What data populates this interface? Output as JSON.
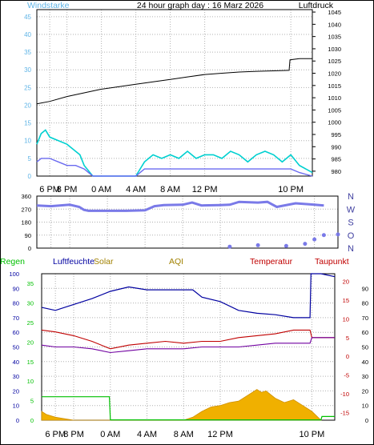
{
  "header": {
    "title": "24 hour graph day : 16 Marz 2026",
    "left_label": "Windstarke",
    "right_label": "Luftdruck"
  },
  "colors": {
    "gust": "#00d0d0",
    "wind": "#6a6af0",
    "pressure": "#000000",
    "direction": "#7a7ae8",
    "humidity": "#0000a0",
    "temperature": "#c00000",
    "dewpoint": "#7000a0",
    "rain": "#00c000",
    "solar": "#f0b000",
    "grid": "#b0b0b0"
  },
  "chart_data": [
    {
      "type": "line",
      "panel": "wind-pressure",
      "title": "24 hour graph day : 16 Marz 2026",
      "ylabel_left": "Windstarke",
      "ylabel_right": "Luftdruck",
      "x_ticks": [
        "6 PM",
        "8 PM",
        "0 AM",
        "4 AM",
        "8 AM",
        "12 PM",
        "10 PM"
      ],
      "x_tick_hours": [
        18,
        20,
        24,
        28,
        32,
        36,
        46
      ],
      "x_range_hours": [
        16.5,
        48.5
      ],
      "y_left_ticks": [
        0,
        5,
        10,
        15,
        20,
        25,
        30,
        35,
        40,
        45
      ],
      "y_left_range": [
        0,
        47
      ],
      "y_right_ticks": [
        980,
        985,
        990,
        995,
        1000,
        1005,
        1010,
        1015,
        1020,
        1025,
        1030,
        1035,
        1040,
        1045
      ],
      "y_right_range": [
        978,
        1046
      ],
      "grid": true,
      "series": [
        {
          "axis": "right",
          "x": [
            16.5,
            18,
            20,
            22,
            24,
            26,
            28,
            30,
            32,
            34,
            36,
            38,
            40,
            42,
            44,
            45.8,
            45.9,
            47,
            48.5
          ],
          "values": [
            1007.5,
            1008.5,
            1010.5,
            1012,
            1013.5,
            1014.5,
            1015.5,
            1016.5,
            1017.5,
            1018.5,
            1019.5,
            1020,
            1020.5,
            1020.8,
            1021,
            1021.2,
            1025.5,
            1026,
            1026
          ]
        },
        {
          "axis": "left",
          "x": [
            16.5,
            17,
            17.5,
            18,
            19,
            20,
            20.5,
            21,
            21.5,
            22,
            23,
            24,
            26,
            28,
            29,
            30,
            31,
            32,
            33,
            34,
            35,
            36,
            37,
            38,
            39,
            40,
            41,
            42,
            43,
            44,
            45,
            46,
            47,
            48.5
          ],
          "values": [
            9,
            12,
            13,
            11,
            10,
            9,
            8,
            7,
            6,
            3,
            0,
            0,
            0,
            0,
            4,
            6,
            5,
            6,
            5,
            7,
            5,
            6,
            6,
            5,
            7,
            6,
            4,
            6,
            7,
            6,
            4,
            6,
            3,
            1
          ]
        },
        {
          "axis": "left",
          "x": [
            16.5,
            17,
            18,
            19,
            20,
            21,
            22,
            23,
            24,
            26,
            28,
            29,
            30,
            32,
            34,
            36,
            38,
            40,
            42,
            44,
            46,
            47,
            48.5
          ],
          "values": [
            4,
            5,
            5,
            4,
            3,
            3,
            2,
            0,
            0,
            0,
            0,
            2,
            2,
            2,
            2,
            2,
            2,
            2,
            2,
            2,
            2,
            1,
            0
          ]
        }
      ]
    },
    {
      "type": "scatter",
      "panel": "wind-direction",
      "y_ticks": [
        0,
        90,
        180,
        270,
        360
      ],
      "y_range": [
        0,
        360
      ],
      "compass_labels": [
        "N",
        "W",
        "S",
        "O",
        "N"
      ],
      "grid": true,
      "series": [
        {
          "x": [
            16.5,
            18,
            20,
            21,
            21.5,
            22,
            24,
            26,
            28,
            29,
            30,
            32,
            33,
            34,
            36,
            37,
            38,
            40,
            41,
            42,
            44,
            45,
            46,
            47
          ],
          "values": [
            295,
            290,
            300,
            285,
            265,
            258,
            258,
            258,
            262,
            290,
            298,
            300,
            315,
            295,
            298,
            300,
            320,
            315,
            320,
            285,
            310,
            305,
            300,
            295
          ]
        },
        {
          "x": [
            37,
            40,
            43,
            45,
            46,
            47,
            48.5
          ],
          "values": [
            10,
            20,
            15,
            30,
            60,
            90,
            95
          ]
        }
      ]
    },
    {
      "type": "line",
      "panel": "temp-humidity-rain-solar",
      "legend": [
        "Regen",
        "Luftfeuchte",
        "Solar",
        "AQI",
        "Temperatur",
        "Taupunkt"
      ],
      "x_ticks": [
        "6 PM",
        "8 PM",
        "0 AM",
        "4 AM",
        "8 AM",
        "12 PM",
        "10 PM"
      ],
      "x_tick_hours": [
        18,
        20,
        24,
        28,
        32,
        36,
        46
      ],
      "x_range_hours": [
        16.5,
        48.5
      ],
      "humidity_ticks": [
        0,
        10,
        20,
        30,
        40,
        50,
        60,
        70,
        80,
        90,
        100
      ],
      "rain_ticks": [
        0,
        5,
        10,
        15,
        20,
        25,
        30,
        35
      ],
      "temperature_ticks": [
        -15,
        -10,
        -5,
        0,
        5,
        10,
        15,
        20
      ],
      "dewpoint_ticks": [
        0,
        10,
        20,
        30,
        40,
        50,
        60,
        70,
        80,
        90
      ],
      "humidity_range": [
        0,
        100
      ],
      "temperature_range": [
        -17,
        22
      ],
      "grid": true,
      "series": [
        {
          "name": "Luftfeuchte",
          "x": [
            16.5,
            18,
            20,
            22,
            24,
            26,
            28,
            30,
            31,
            32,
            33,
            34,
            36,
            38,
            40,
            42,
            44,
            45.8,
            45.9,
            47,
            48.5
          ],
          "values": [
            77,
            75,
            79,
            83,
            88,
            91,
            89,
            89,
            89,
            89,
            89,
            84,
            81,
            75,
            73,
            72,
            70,
            70,
            100,
            100,
            98
          ]
        },
        {
          "name": "Temperatur",
          "x": [
            16.5,
            18,
            20,
            22,
            24,
            26,
            28,
            30,
            32,
            34,
            36,
            38,
            40,
            42,
            44,
            45.8,
            46,
            48.5
          ],
          "values": [
            7,
            6.5,
            5.5,
            4,
            2,
            3,
            3.5,
            4,
            3.5,
            4,
            4,
            5,
            5.5,
            6,
            7,
            7,
            5,
            5
          ]
        },
        {
          "name": "Taupunkt",
          "x": [
            16.5,
            18,
            20,
            22,
            24,
            26,
            28,
            30,
            32,
            34,
            36,
            38,
            40,
            42,
            44,
            45.8,
            46,
            48.5
          ],
          "values": [
            3,
            2.5,
            2.5,
            2,
            1,
            1.5,
            2,
            2,
            2,
            2.5,
            2.5,
            2.5,
            3,
            3.5,
            3.5,
            3.5,
            5,
            5
          ]
        },
        {
          "name": "Regen",
          "x": [
            16.5,
            23.9,
            24,
            45.8,
            45.9,
            47,
            47.1,
            48.5
          ],
          "values": [
            16,
            16,
            0.2,
            0.2,
            0.2,
            0.2,
            2.5,
            2.5
          ]
        },
        {
          "name": "Solar",
          "x": [
            16.5,
            17,
            18,
            19,
            20,
            21,
            32,
            33,
            34,
            35,
            36,
            37,
            38,
            39,
            40,
            40.5,
            41,
            42,
            43,
            44,
            45,
            46,
            47
          ],
          "values": [
            6,
            4,
            2,
            1,
            0,
            0,
            0,
            2,
            6,
            9,
            10,
            12,
            13,
            17,
            21,
            19,
            20,
            15,
            12,
            14,
            10,
            6,
            0
          ]
        }
      ]
    }
  ]
}
